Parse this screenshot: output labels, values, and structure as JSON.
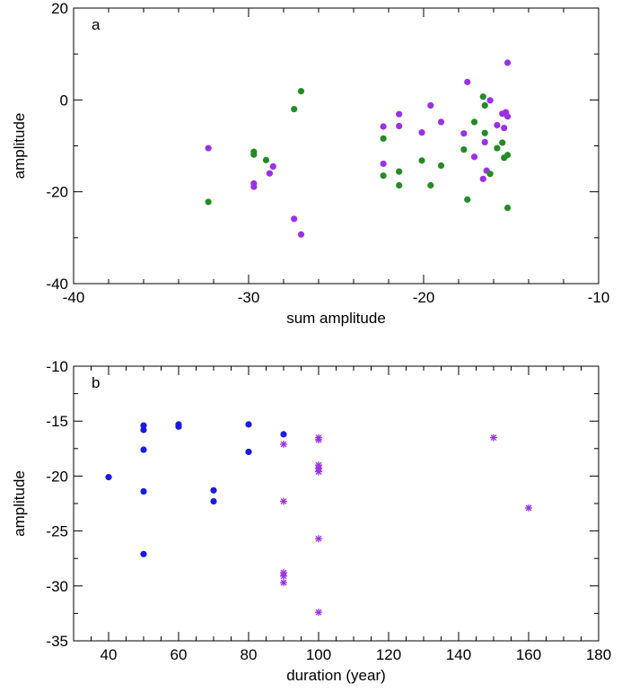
{
  "chart_data": [
    {
      "panel_label": "a",
      "type": "scatter",
      "xlabel": "sum amplitude",
      "ylabel": "amplitude",
      "xlim": [
        -40,
        -10
      ],
      "ylim": [
        -40,
        20
      ],
      "xticks": [
        -40,
        -30,
        -20,
        -10
      ],
      "yticks": [
        -40,
        -20,
        0,
        20
      ],
      "grid": false,
      "series": [
        {
          "marker": "dot",
          "color": "#9b30e6",
          "points": [
            [
              -32.3,
              -10.5
            ],
            [
              -29.7,
              -18.2
            ],
            [
              -29.7,
              -18.9
            ],
            [
              -28.8,
              -16.0
            ],
            [
              -28.6,
              -14.5
            ],
            [
              -27.4,
              -25.9
            ],
            [
              -27.0,
              -29.3
            ],
            [
              -22.3,
              -5.8
            ],
            [
              -22.3,
              -13.9
            ],
            [
              -21.4,
              -3.1
            ],
            [
              -21.4,
              -5.7
            ],
            [
              -20.1,
              -7.1
            ],
            [
              -19.6,
              -1.2
            ],
            [
              -19.0,
              -4.8
            ],
            [
              -17.7,
              -7.3
            ],
            [
              -17.5,
              3.9
            ],
            [
              -17.1,
              -12.4
            ],
            [
              -16.6,
              -17.2
            ],
            [
              -16.5,
              -9.2
            ],
            [
              -16.4,
              -15.4
            ],
            [
              -16.2,
              -0.1
            ],
            [
              -15.8,
              -5.5
            ],
            [
              -15.5,
              -3.0
            ],
            [
              -15.4,
              -6.1
            ],
            [
              -15.3,
              -2.7
            ],
            [
              -15.2,
              -3.6
            ],
            [
              -15.2,
              8.1
            ]
          ]
        },
        {
          "marker": "dot",
          "color": "#238c23",
          "points": [
            [
              -32.3,
              -22.2
            ],
            [
              -29.7,
              -11.3
            ],
            [
              -29.7,
              -11.9
            ],
            [
              -29.0,
              -13.1
            ],
            [
              -27.4,
              -2.0
            ],
            [
              -27.0,
              1.9
            ],
            [
              -22.3,
              -8.4
            ],
            [
              -22.3,
              -16.5
            ],
            [
              -21.4,
              -15.6
            ],
            [
              -21.4,
              -18.6
            ],
            [
              -20.1,
              -13.2
            ],
            [
              -19.6,
              -18.6
            ],
            [
              -19.0,
              -14.3
            ],
            [
              -17.7,
              -10.8
            ],
            [
              -17.5,
              -21.7
            ],
            [
              -17.1,
              -4.8
            ],
            [
              -16.6,
              0.7
            ],
            [
              -16.5,
              -1.2
            ],
            [
              -16.5,
              -7.2
            ],
            [
              -16.2,
              -16.1
            ],
            [
              -15.8,
              -10.5
            ],
            [
              -15.5,
              -9.3
            ],
            [
              -15.4,
              -12.6
            ],
            [
              -15.2,
              -12.0
            ],
            [
              -15.2,
              -23.5
            ]
          ]
        }
      ]
    },
    {
      "panel_label": "b",
      "type": "scatter",
      "xlabel": "duration (year)",
      "ylabel": "amplitude",
      "xlim": [
        30,
        180
      ],
      "ylim": [
        -35,
        -10
      ],
      "xticks": [
        40,
        60,
        80,
        100,
        120,
        140,
        160,
        180
      ],
      "yticks": [
        -35,
        -30,
        -25,
        -20,
        -15,
        -10
      ],
      "grid": false,
      "series": [
        {
          "marker": "dot",
          "color": "#1a1ae6",
          "points": [
            [
              40,
              -20.1
            ],
            [
              50,
              -15.4
            ],
            [
              50,
              -15.8
            ],
            [
              50,
              -17.6
            ],
            [
              50,
              -21.4
            ],
            [
              50,
              -27.1
            ],
            [
              60,
              -15.3
            ],
            [
              60,
              -15.5
            ],
            [
              70,
              -21.3
            ],
            [
              70,
              -22.3
            ],
            [
              80,
              -15.3
            ],
            [
              80,
              -17.8
            ],
            [
              90,
              -16.2
            ]
          ]
        },
        {
          "marker": "asterisk",
          "color": "#9b30e6",
          "points": [
            [
              90,
              -17.1
            ],
            [
              90,
              -22.3
            ],
            [
              90,
              -28.8
            ],
            [
              90,
              -29.1
            ],
            [
              90,
              -29.7
            ],
            [
              100,
              -16.5
            ],
            [
              100,
              -16.7
            ],
            [
              100,
              -19.0
            ],
            [
              100,
              -19.3
            ],
            [
              100,
              -19.6
            ],
            [
              100,
              -25.7
            ],
            [
              100,
              -32.4
            ],
            [
              150,
              -16.5
            ],
            [
              160,
              -22.9
            ]
          ]
        }
      ]
    }
  ]
}
